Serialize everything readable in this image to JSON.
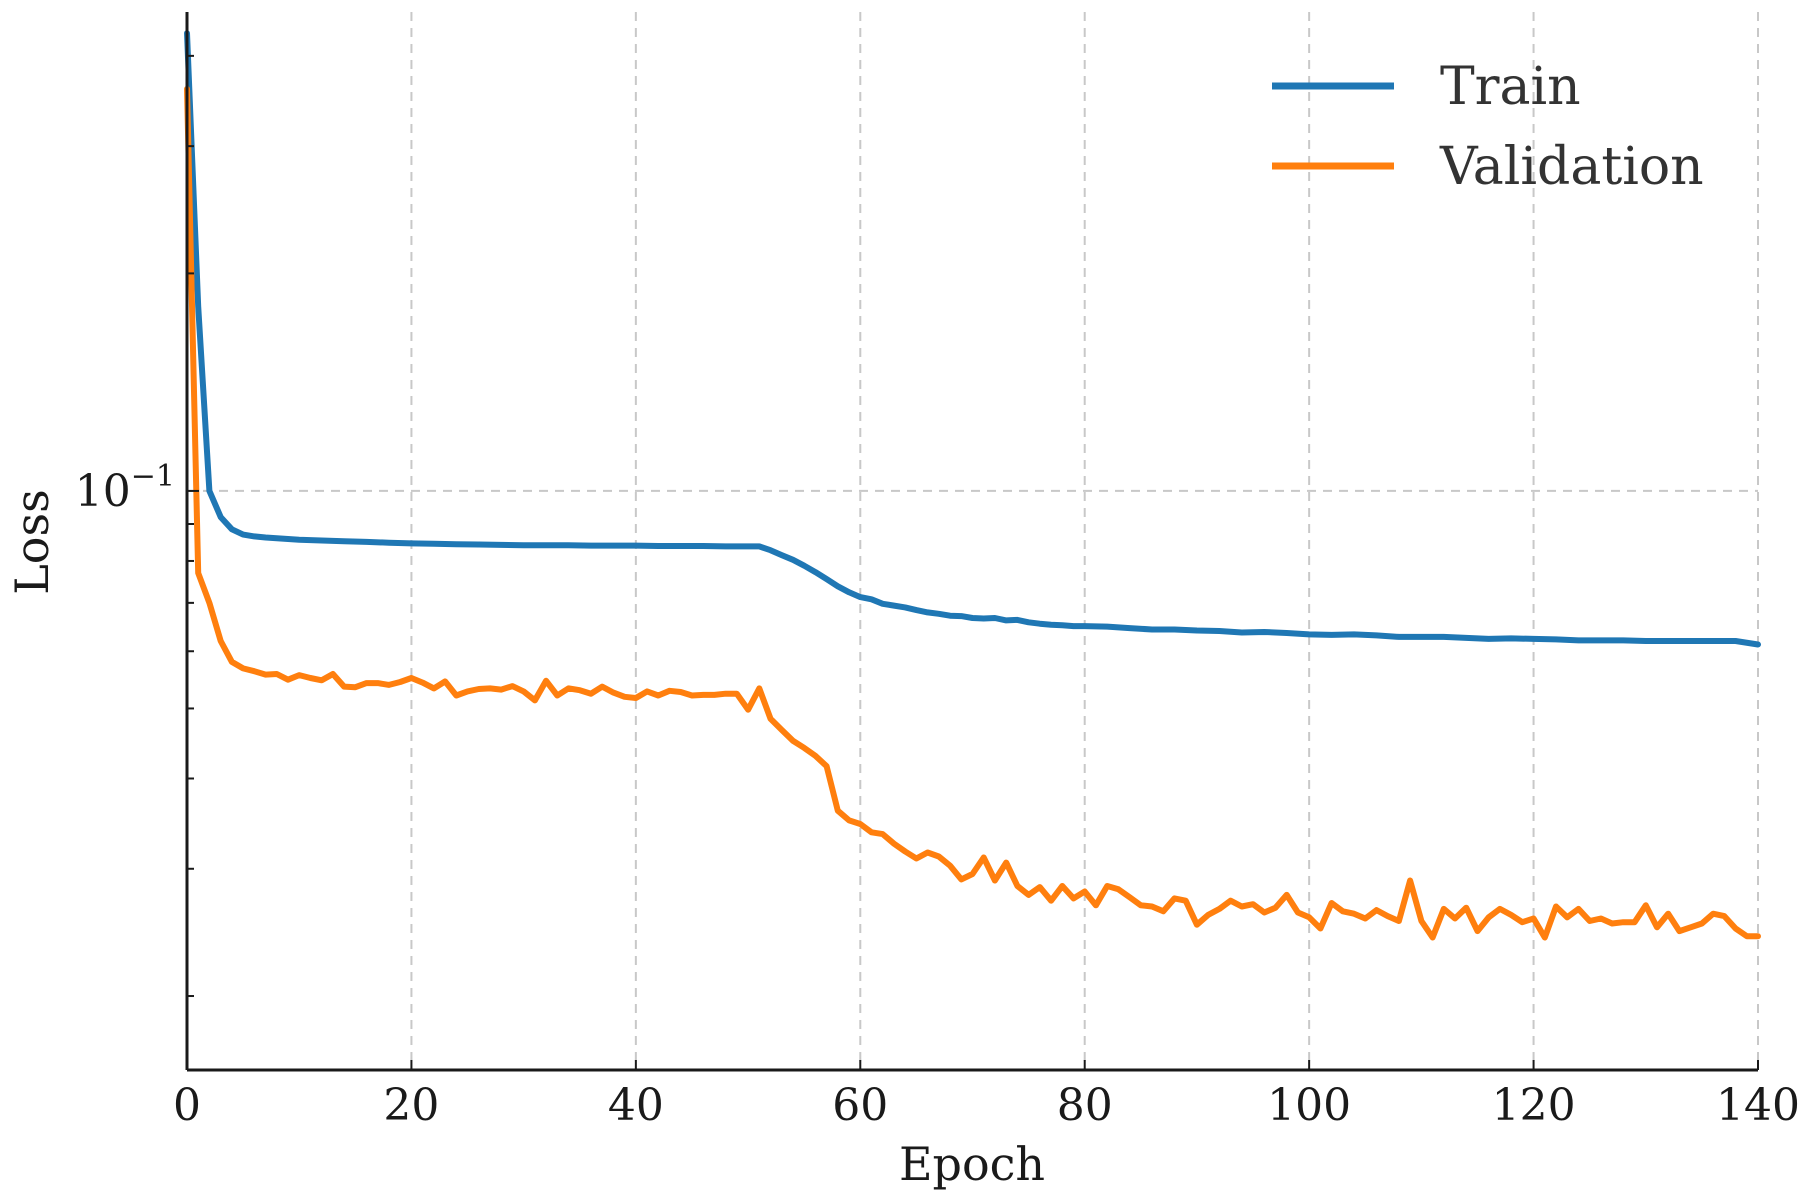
{
  "chart_data": {
    "type": "line",
    "title": "",
    "xlabel": "Epoch",
    "ylabel": "Loss",
    "yscale": "log",
    "xlim": [
      0,
      140
    ],
    "ylim": [
      0.0158,
      0.46
    ],
    "xticks": [
      0,
      20,
      40,
      60,
      80,
      100,
      120,
      140
    ],
    "xtick_labels": [
      "0",
      "20",
      "40",
      "60",
      "80",
      "100",
      "120",
      "140"
    ],
    "yticks_major": [
      0.1
    ],
    "ytick_major_labels": [
      {
        "base": "10",
        "exp": "−1"
      }
    ],
    "yticks_minor": [
      0.02,
      0.03,
      0.04,
      0.05,
      0.06,
      0.07,
      0.08,
      0.09,
      0.2,
      0.3,
      0.4
    ],
    "grid": true,
    "legend_position": "top-right",
    "series": [
      {
        "name": "Train",
        "color": "#1f77b4",
        "x": [
          0,
          1,
          2,
          3,
          4,
          5,
          6,
          7,
          8,
          9,
          10,
          12,
          14,
          16,
          18,
          20,
          22,
          24,
          26,
          28,
          30,
          32,
          34,
          36,
          38,
          40,
          42,
          44,
          46,
          48,
          50,
          51,
          52,
          53,
          54,
          55,
          56,
          57,
          58,
          59,
          60,
          61,
          62,
          63,
          64,
          65,
          66,
          67,
          68,
          69,
          70,
          71,
          72,
          73,
          74,
          75,
          76,
          77,
          78,
          79,
          80,
          82,
          84,
          86,
          88,
          90,
          92,
          94,
          96,
          98,
          100,
          102,
          104,
          106,
          108,
          110,
          112,
          114,
          116,
          118,
          120,
          122,
          124,
          126,
          128,
          130,
          132,
          134,
          136,
          138,
          140
        ],
        "y": [
          0.43,
          0.18,
          0.1,
          0.092,
          0.0885,
          0.087,
          0.0865,
          0.0862,
          0.086,
          0.0858,
          0.0856,
          0.0854,
          0.0852,
          0.085,
          0.0848,
          0.0846,
          0.0845,
          0.0844,
          0.0843,
          0.0842,
          0.0841,
          0.0841,
          0.0841,
          0.084,
          0.084,
          0.084,
          0.0839,
          0.0839,
          0.0839,
          0.0838,
          0.0838,
          0.0838,
          0.0828,
          0.0815,
          0.0803,
          0.0788,
          0.0772,
          0.0755,
          0.0738,
          0.0724,
          0.0713,
          0.0708,
          0.0698,
          0.0694,
          0.069,
          0.0684,
          0.0679,
          0.0676,
          0.0672,
          0.0671,
          0.0667,
          0.0666,
          0.0667,
          0.0662,
          0.0663,
          0.0658,
          0.0655,
          0.0653,
          0.0652,
          0.065,
          0.065,
          0.0649,
          0.0646,
          0.0643,
          0.0643,
          0.0641,
          0.064,
          0.0637,
          0.0638,
          0.0636,
          0.0633,
          0.0632,
          0.0633,
          0.0631,
          0.0628,
          0.0628,
          0.0628,
          0.0626,
          0.0624,
          0.0625,
          0.0624,
          0.0623,
          0.0621,
          0.0621,
          0.0621,
          0.062,
          0.062,
          0.062,
          0.062,
          0.062,
          0.0613
        ]
      },
      {
        "name": "Validation",
        "color": "#ff7f0e",
        "x": [
          0,
          1,
          2,
          3,
          4,
          5,
          6,
          7,
          8,
          9,
          10,
          11,
          12,
          13,
          14,
          15,
          16,
          17,
          18,
          19,
          20,
          21,
          22,
          23,
          24,
          25,
          26,
          27,
          28,
          29,
          30,
          31,
          32,
          33,
          34,
          35,
          36,
          37,
          38,
          39,
          40,
          41,
          42,
          43,
          44,
          45,
          46,
          47,
          48,
          49,
          50,
          51,
          52,
          53,
          54,
          55,
          56,
          57,
          58,
          59,
          60,
          61,
          62,
          63,
          64,
          65,
          66,
          67,
          68,
          69,
          70,
          71,
          72,
          73,
          74,
          75,
          76,
          77,
          78,
          79,
          80,
          81,
          82,
          83,
          84,
          85,
          86,
          87,
          88,
          89,
          90,
          91,
          92,
          93,
          94,
          95,
          96,
          97,
          98,
          99,
          100,
          101,
          102,
          103,
          104,
          105,
          106,
          107,
          108,
          109,
          110,
          111,
          112,
          113,
          114,
          115,
          116,
          117,
          118,
          119,
          120,
          121,
          122,
          123,
          124,
          125,
          126,
          127,
          128,
          129,
          130,
          131,
          132,
          133,
          134,
          135,
          136,
          137,
          138,
          139,
          140
        ],
        "y": [
          0.36,
          0.077,
          0.07,
          0.062,
          0.058,
          0.0568,
          0.0563,
          0.0557,
          0.0558,
          0.0548,
          0.0556,
          0.0551,
          0.0547,
          0.0558,
          0.0536,
          0.0535,
          0.0542,
          0.0542,
          0.0539,
          0.0544,
          0.0551,
          0.0543,
          0.0533,
          0.0545,
          0.0521,
          0.0528,
          0.0532,
          0.0533,
          0.0531,
          0.0537,
          0.0528,
          0.0513,
          0.0546,
          0.0521,
          0.0533,
          0.053,
          0.0524,
          0.0536,
          0.0526,
          0.0519,
          0.0517,
          0.0528,
          0.0521,
          0.0529,
          0.0527,
          0.0521,
          0.0522,
          0.0522,
          0.0524,
          0.0524,
          0.0498,
          0.0533,
          0.0484,
          0.0467,
          0.0451,
          0.0441,
          0.043,
          0.0416,
          0.0361,
          0.035,
          0.0346,
          0.0337,
          0.0335,
          0.0325,
          0.0317,
          0.031,
          0.0316,
          0.0312,
          0.0303,
          0.029,
          0.0295,
          0.0311,
          0.0289,
          0.0306,
          0.0284,
          0.0276,
          0.0283,
          0.0271,
          0.0284,
          0.0273,
          0.0279,
          0.0267,
          0.0284,
          0.0281,
          0.0274,
          0.0267,
          0.0266,
          0.0262,
          0.0273,
          0.0271,
          0.0251,
          0.0259,
          0.0264,
          0.0271,
          0.0266,
          0.0268,
          0.0261,
          0.0265,
          0.0276,
          0.0261,
          0.0257,
          0.0248,
          0.0269,
          0.0262,
          0.026,
          0.0256,
          0.0263,
          0.0258,
          0.0254,
          0.0289,
          0.0254,
          0.0241,
          0.0264,
          0.0256,
          0.0265,
          0.0246,
          0.0257,
          0.0264,
          0.0259,
          0.0253,
          0.0256,
          0.0241,
          0.0266,
          0.0257,
          0.0264,
          0.0254,
          0.0256,
          0.0252,
          0.0253,
          0.0253,
          0.0267,
          0.0249,
          0.026,
          0.0246,
          0.0249,
          0.0252,
          0.026,
          0.0258,
          0.0248,
          0.0242,
          0.0242
        ]
      }
    ]
  }
}
